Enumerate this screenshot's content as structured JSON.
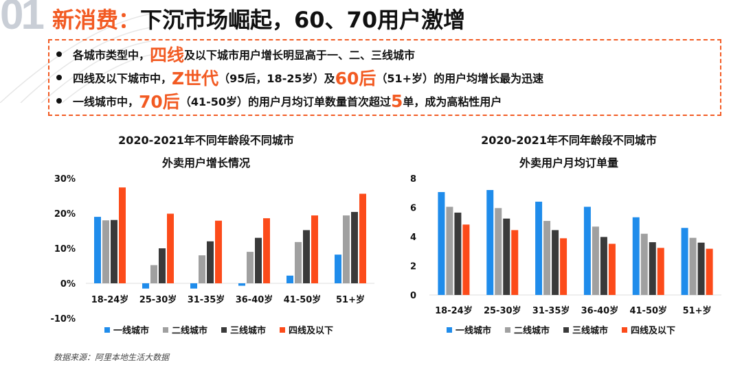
{
  "header": {
    "number": "01",
    "title_highlight": "新消费：",
    "title_rest": "下沉市场崛起，60、70用户激增"
  },
  "bullets": [
    [
      {
        "t": "各城市类型中，",
        "hl": false
      },
      {
        "t": "四线",
        "hl": true
      },
      {
        "t": "及以下城市用户增长明显高于一、二、三线城市",
        "hl": false
      }
    ],
    [
      {
        "t": "四线及以下城市中，",
        "hl": false
      },
      {
        "t": "Z世代",
        "hl": true
      },
      {
        "t": "（95后，18-25岁）及",
        "hl": false
      },
      {
        "t": "60后",
        "hl": true
      },
      {
        "t": "（51+岁）的用户均增长最为迅速",
        "hl": false
      }
    ],
    [
      {
        "t": "一线城市中，",
        "hl": false
      },
      {
        "t": "70后",
        "hl": true
      },
      {
        "t": "（41-50岁）的用户月均订单数量首次超过",
        "hl": false
      },
      {
        "t": "5",
        "hl": true
      },
      {
        "t": "单，成为高粘性用户",
        "hl": false
      }
    ]
  ],
  "source": "数据来源：阿里本地生活大数据",
  "colors": {
    "accent": "#f25a22",
    "s1": "#1f8ceb",
    "s2": "#a0a0a0",
    "s3": "#3a3a3a",
    "s4": "#fc4b1a"
  },
  "chart_data": [
    {
      "type": "bar",
      "title_line1": "2020-2021年不同年龄段不同城市",
      "title_line2": "外卖用户增长情况",
      "categories": [
        "18-24岁",
        "25-30岁",
        "31-35岁",
        "36-40岁",
        "41-50岁",
        "51+岁"
      ],
      "ylim": [
        -10,
        30
      ],
      "yticks": [
        "-10%",
        "0%",
        "10%",
        "20%",
        "30%"
      ],
      "ytick_values": [
        -10,
        0,
        10,
        20,
        30
      ],
      "unit": "%",
      "legend": "bottom",
      "series": [
        {
          "name": "一线城市",
          "values": [
            19.0,
            -1.5,
            -1.5,
            -0.7,
            2.2,
            8.2
          ]
        },
        {
          "name": "二线城市",
          "values": [
            18.0,
            5.2,
            8.0,
            9.0,
            11.8,
            19.4
          ]
        },
        {
          "name": "三线城市",
          "values": [
            18.1,
            10.0,
            12.0,
            13.0,
            15.2,
            20.4
          ]
        },
        {
          "name": "四线及以下",
          "values": [
            27.4,
            19.9,
            17.9,
            18.6,
            19.4,
            25.6
          ]
        }
      ]
    },
    {
      "type": "bar",
      "title_line1": "2020-2021年不同年龄段不同城市",
      "title_line2": "外卖用户月均订单量",
      "categories": [
        "18-24岁",
        "25-30岁",
        "31-35岁",
        "36-40岁",
        "41-50岁",
        "51+岁"
      ],
      "ylim": [
        0,
        8
      ],
      "yticks": [
        "0",
        "2",
        "4",
        "6",
        "8"
      ],
      "ytick_values": [
        0,
        2,
        4,
        6,
        8
      ],
      "legend": "bottom",
      "series": [
        {
          "name": "一线城市",
          "values": [
            7.06,
            7.2,
            6.4,
            6.05,
            5.33,
            4.6
          ]
        },
        {
          "name": "二线城市",
          "values": [
            6.05,
            5.96,
            5.08,
            4.69,
            4.2,
            3.92
          ]
        },
        {
          "name": "三线城市",
          "values": [
            5.65,
            5.24,
            4.45,
            3.98,
            3.62,
            3.59
          ]
        },
        {
          "name": "四线及以下",
          "values": [
            4.83,
            4.45,
            3.89,
            3.51,
            3.23,
            3.17
          ]
        }
      ]
    }
  ]
}
